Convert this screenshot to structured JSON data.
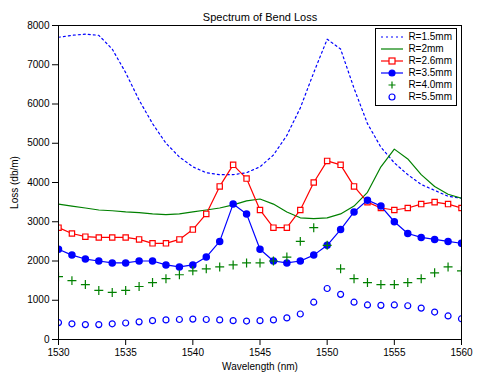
{
  "chart_data": {
    "type": "line",
    "title": "Spectrum of Bend Loss",
    "x_label": "Wavelength (nm)",
    "y_label": "Loss (db/m)",
    "x": [
      1530,
      1531,
      1532,
      1533,
      1534,
      1535,
      1536,
      1537,
      1538,
      1539,
      1540,
      1541,
      1542,
      1543,
      1544,
      1545,
      1546,
      1547,
      1548,
      1549,
      1550,
      1551,
      1552,
      1553,
      1554,
      1555,
      1556,
      1557,
      1558,
      1559,
      1560
    ],
    "xlim": [
      1530,
      1560
    ],
    "xticks": [
      1530,
      1535,
      1540,
      1545,
      1550,
      1555,
      1560
    ],
    "ylim": [
      0,
      8000
    ],
    "yticks": [
      0,
      1000,
      2000,
      3000,
      4000,
      5000,
      6000,
      7000,
      8000
    ],
    "grid": false,
    "legend": "top-right",
    "series": [
      {
        "name": "R=1.5mm",
        "color": "#0000ff",
        "marker": "none",
        "line_style": "dotted",
        "values": [
          7700,
          7750,
          7780,
          7750,
          7400,
          6800,
          6100,
          5500,
          5000,
          4650,
          4400,
          4250,
          4200,
          4200,
          4250,
          4400,
          4700,
          5200,
          5900,
          6800,
          7650,
          7400,
          6400,
          5500,
          4900,
          4500,
          4200,
          3950,
          3800,
          3650,
          3600
        ]
      },
      {
        "name": "R=2mm",
        "color": "#008000",
        "marker": "none",
        "line_style": "solid",
        "values": [
          3450,
          3400,
          3350,
          3300,
          3280,
          3250,
          3230,
          3200,
          3180,
          3200,
          3250,
          3300,
          3350,
          3430,
          3530,
          3580,
          3450,
          3250,
          3100,
          3080,
          3100,
          3200,
          3400,
          3750,
          4400,
          4850,
          4600,
          4200,
          3900,
          3700,
          3600
        ]
      },
      {
        "name": "R=2.6mm",
        "color": "#ff0000",
        "marker": "open-square",
        "line_style": "solid",
        "values": [
          2850,
          2700,
          2620,
          2600,
          2600,
          2600,
          2550,
          2450,
          2450,
          2550,
          2800,
          3200,
          3900,
          4450,
          4100,
          3300,
          2850,
          2850,
          3300,
          4000,
          4550,
          4450,
          3900,
          3500,
          3350,
          3300,
          3350,
          3450,
          3500,
          3450,
          3350
        ]
      },
      {
        "name": "R=3.5mm",
        "color": "#0000ff",
        "marker": "circle",
        "line_style": "solid",
        "values": [
          2300,
          2150,
          2050,
          2000,
          1950,
          1950,
          2000,
          2000,
          1900,
          1850,
          1900,
          2100,
          2500,
          3450,
          3200,
          2300,
          2000,
          1950,
          2000,
          2150,
          2400,
          2800,
          3250,
          3550,
          3400,
          3000,
          2700,
          2600,
          2550,
          2500,
          2450
        ]
      },
      {
        "name": "R=4.0mm",
        "color": "#008000",
        "marker": "plus",
        "line_style": "none",
        "values": [
          1600,
          1500,
          1400,
          1250,
          1200,
          1250,
          1350,
          1450,
          1550,
          1650,
          1750,
          1800,
          1850,
          1900,
          1950,
          1950,
          2000,
          2100,
          2500,
          2850,
          2400,
          1800,
          1550,
          1450,
          1400,
          1400,
          1450,
          1550,
          1700,
          1850,
          1750
        ]
      },
      {
        "name": "R=5.5mm",
        "color": "#0000ff",
        "marker": "open-circle",
        "line_style": "none",
        "values": [
          430,
          400,
          380,
          380,
          400,
          420,
          450,
          480,
          500,
          510,
          520,
          510,
          500,
          480,
          470,
          480,
          500,
          550,
          650,
          950,
          1300,
          1150,
          950,
          880,
          870,
          880,
          860,
          800,
          700,
          600,
          530
        ]
      }
    ]
  }
}
